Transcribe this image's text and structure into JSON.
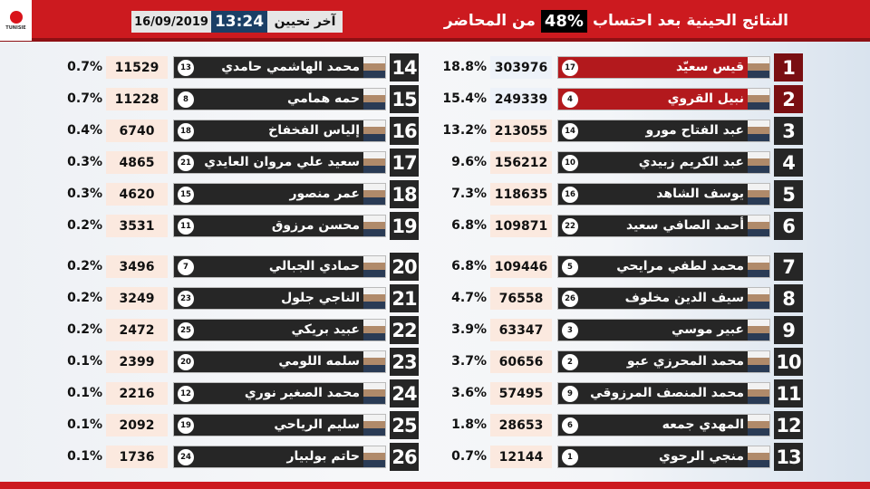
{
  "header": {
    "title_before": "النتائج الحينية بعد احتساب",
    "percent_counted": "48%",
    "title_after": "من المحاضر",
    "last_update_label": "آخر تحيين",
    "time": "13:24",
    "date": "16/09/2019",
    "logo_text": "TUNISIE"
  },
  "colors": {
    "brand_red": "#cc1a1f",
    "leader_red": "#b3191d",
    "dark_bar": "#262626",
    "time_blue": "#1b3f66"
  },
  "candidates": [
    {
      "rank": "1",
      "name": "قيس سعيّد",
      "ballot": "17",
      "votes": "303976",
      "pct": "18.8%"
    },
    {
      "rank": "2",
      "name": "نبيل القروي",
      "ballot": "4",
      "votes": "249339",
      "pct": "15.4%"
    },
    {
      "rank": "3",
      "name": "عبد الفتاح مورو",
      "ballot": "14",
      "votes": "213055",
      "pct": "13.2%"
    },
    {
      "rank": "4",
      "name": "عبد الكريم زبيدي",
      "ballot": "10",
      "votes": "156212",
      "pct": "9.6%"
    },
    {
      "rank": "5",
      "name": "يوسف الشاهد",
      "ballot": "16",
      "votes": "118635",
      "pct": "7.3%"
    },
    {
      "rank": "6",
      "name": "أحمد الصافي سعيد",
      "ballot": "22",
      "votes": "109871",
      "pct": "6.8%"
    },
    {
      "rank": "7",
      "name": "محمد لطفي مرايحي",
      "ballot": "5",
      "votes": "109446",
      "pct": "6.8%"
    },
    {
      "rank": "8",
      "name": "سيف الدين مخلوف",
      "ballot": "26",
      "votes": "76558",
      "pct": "4.7%"
    },
    {
      "rank": "9",
      "name": "عبير موسي",
      "ballot": "3",
      "votes": "63347",
      "pct": "3.9%"
    },
    {
      "rank": "10",
      "name": "محمد المحرزي عبو",
      "ballot": "2",
      "votes": "60656",
      "pct": "3.7%"
    },
    {
      "rank": "11",
      "name": "محمد المنصف المرزوقي",
      "ballot": "9",
      "votes": "57495",
      "pct": "3.6%"
    },
    {
      "rank": "12",
      "name": "المهدي جمعه",
      "ballot": "6",
      "votes": "28653",
      "pct": "1.8%"
    },
    {
      "rank": "13",
      "name": "منجي الرحوي",
      "ballot": "1",
      "votes": "12144",
      "pct": "0.7%"
    },
    {
      "rank": "14",
      "name": "محمد الهاشمي حامدي",
      "ballot": "13",
      "votes": "11529",
      "pct": "0.7%"
    },
    {
      "rank": "15",
      "name": "حمه همامي",
      "ballot": "8",
      "votes": "11228",
      "pct": "0.7%"
    },
    {
      "rank": "16",
      "name": "إلياس الفخفاخ",
      "ballot": "18",
      "votes": "6740",
      "pct": "0.4%"
    },
    {
      "rank": "17",
      "name": "سعيد علي مروان العايدي",
      "ballot": "21",
      "votes": "4865",
      "pct": "0.3%"
    },
    {
      "rank": "18",
      "name": "عمر منصور",
      "ballot": "15",
      "votes": "4620",
      "pct": "0.3%"
    },
    {
      "rank": "19",
      "name": "محسن مرزوق",
      "ballot": "11",
      "votes": "3531",
      "pct": "0.2%"
    },
    {
      "rank": "20",
      "name": "حمادي الجبالي",
      "ballot": "7",
      "votes": "3496",
      "pct": "0.2%"
    },
    {
      "rank": "21",
      "name": "الناجي جلول",
      "ballot": "23",
      "votes": "3249",
      "pct": "0.2%"
    },
    {
      "rank": "22",
      "name": "عبيد بريكي",
      "ballot": "25",
      "votes": "2472",
      "pct": "0.2%"
    },
    {
      "rank": "23",
      "name": "سلمه اللومي",
      "ballot": "20",
      "votes": "2399",
      "pct": "0.1%"
    },
    {
      "rank": "24",
      "name": "محمد الصغير نوري",
      "ballot": "12",
      "votes": "2216",
      "pct": "0.1%"
    },
    {
      "rank": "25",
      "name": "سليم الرياحي",
      "ballot": "19",
      "votes": "2092",
      "pct": "0.1%"
    },
    {
      "rank": "26",
      "name": "حاتم بولبيار",
      "ballot": "24",
      "votes": "1736",
      "pct": "0.1%"
    }
  ]
}
